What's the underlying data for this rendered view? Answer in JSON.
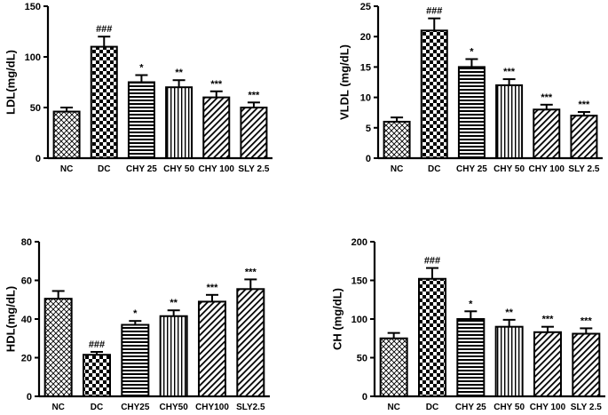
{
  "chart_data": [
    {
      "type": "bar",
      "ylabel": "LDL(mg/dL)",
      "categories": [
        "NC",
        "DC",
        "CHY 25",
        "CHY 50",
        "CHY 100",
        "SLY 2.5"
      ],
      "values": [
        46,
        110,
        75,
        70,
        60,
        50
      ],
      "errors": [
        4,
        10,
        7,
        7,
        6,
        5
      ],
      "significance": [
        "",
        "###",
        "*",
        "**",
        "***",
        "***"
      ],
      "patterns": [
        "crosshatch",
        "checker",
        "hstripe",
        "vstripe",
        "diag",
        "diag"
      ],
      "ylim": [
        0,
        150
      ],
      "yticks": [
        0,
        50,
        100,
        150
      ],
      "ytick_labels": [
        "0",
        "50",
        "100",
        "150"
      ]
    },
    {
      "type": "bar",
      "ylabel": "VLDL (mg/dL)",
      "categories": [
        "NC",
        "DC",
        "CHY 25",
        "CHY 50",
        "CHY 100",
        "SLY 2.5"
      ],
      "values": [
        6,
        21,
        15,
        12,
        8,
        7
      ],
      "errors": [
        0.7,
        2,
        1.3,
        1,
        0.8,
        0.6
      ],
      "significance": [
        "",
        "###",
        "*",
        "***",
        "***",
        "***"
      ],
      "patterns": [
        "crosshatch",
        "checker",
        "hstripe",
        "vstripe",
        "diag",
        "diag"
      ],
      "ylim": [
        0,
        25
      ],
      "yticks": [
        0,
        5,
        10,
        15,
        20,
        25
      ],
      "ytick_labels": [
        "0",
        "5",
        "10",
        "15",
        "20",
        "25"
      ]
    },
    {
      "type": "bar",
      "ylabel": "HDL(mg/dL)",
      "categories": [
        "NC",
        "DC",
        "CHY25",
        "CHY50",
        "CHY100",
        "SLY2.5"
      ],
      "values": [
        50.5,
        21.5,
        37,
        41.5,
        49,
        55.5
      ],
      "errors": [
        4,
        1.5,
        2,
        3,
        3.5,
        5
      ],
      "significance": [
        "",
        "###",
        "*",
        "**",
        "***",
        "***"
      ],
      "patterns": [
        "crosshatch",
        "checker",
        "hstripe",
        "vstripe",
        "diag",
        "diag"
      ],
      "ylim": [
        0,
        80
      ],
      "yticks": [
        0,
        20,
        40,
        60,
        80
      ],
      "ytick_labels": [
        "0",
        "20",
        "40",
        "60",
        "80"
      ]
    },
    {
      "type": "bar",
      "ylabel": "CH (mg/dL)",
      "categories": [
        "NC",
        "DC",
        "CHY 25",
        "CHY 50",
        "CHY 100",
        "SLY 2.5"
      ],
      "values": [
        75,
        152,
        100,
        90,
        83,
        81
      ],
      "errors": [
        7,
        14,
        10,
        9,
        7,
        7
      ],
      "significance": [
        "",
        "###",
        "*",
        "**",
        "***",
        "***"
      ],
      "patterns": [
        "crosshatch",
        "checker",
        "hstripe",
        "vstripe",
        "diag",
        "diag"
      ],
      "ylim": [
        0,
        200
      ],
      "yticks": [
        0,
        50,
        100,
        150,
        200
      ],
      "ytick_labels": [
        "0",
        "50",
        "100",
        "150",
        "200"
      ]
    }
  ]
}
